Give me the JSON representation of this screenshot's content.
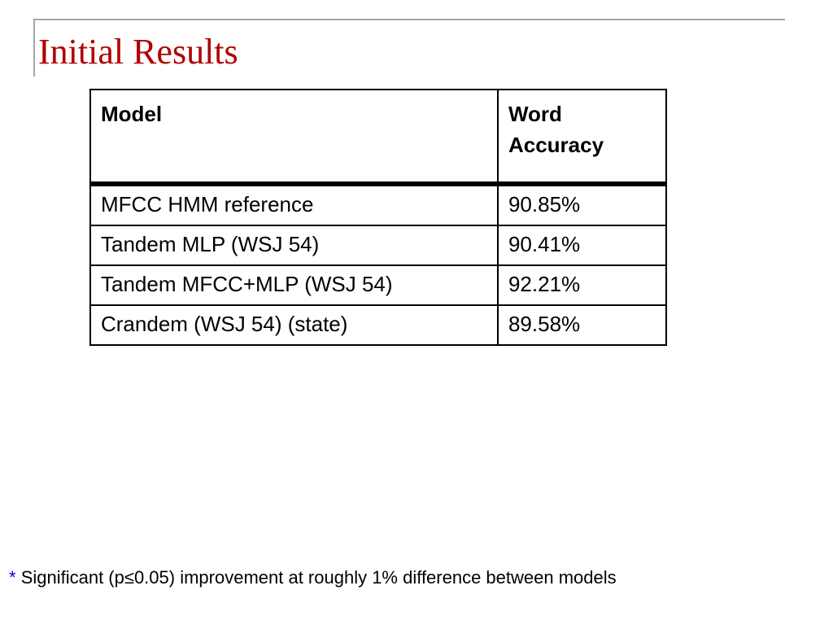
{
  "slide": {
    "title": "Initial Results"
  },
  "table": {
    "headers": {
      "model": "Model",
      "accuracy_line1": "Word",
      "accuracy_line2": "Accuracy"
    },
    "rows": [
      {
        "model": "MFCC HMM reference",
        "accuracy": "90.85%"
      },
      {
        "model": "Tandem MLP (WSJ 54)",
        "accuracy": "90.41%"
      },
      {
        "model": "Tandem MFCC+MLP (WSJ 54)",
        "accuracy": "92.21%"
      },
      {
        "model": "Crandem (WSJ 54) (state)",
        "accuracy": "89.58%"
      }
    ]
  },
  "footnote": {
    "marker": "*",
    "text": "Significant (p≤0.05) improvement at roughly 1% difference between models"
  },
  "colors": {
    "title": "#b00000",
    "footnote_marker": "#0000ee",
    "rule": "#a6a6a6"
  }
}
